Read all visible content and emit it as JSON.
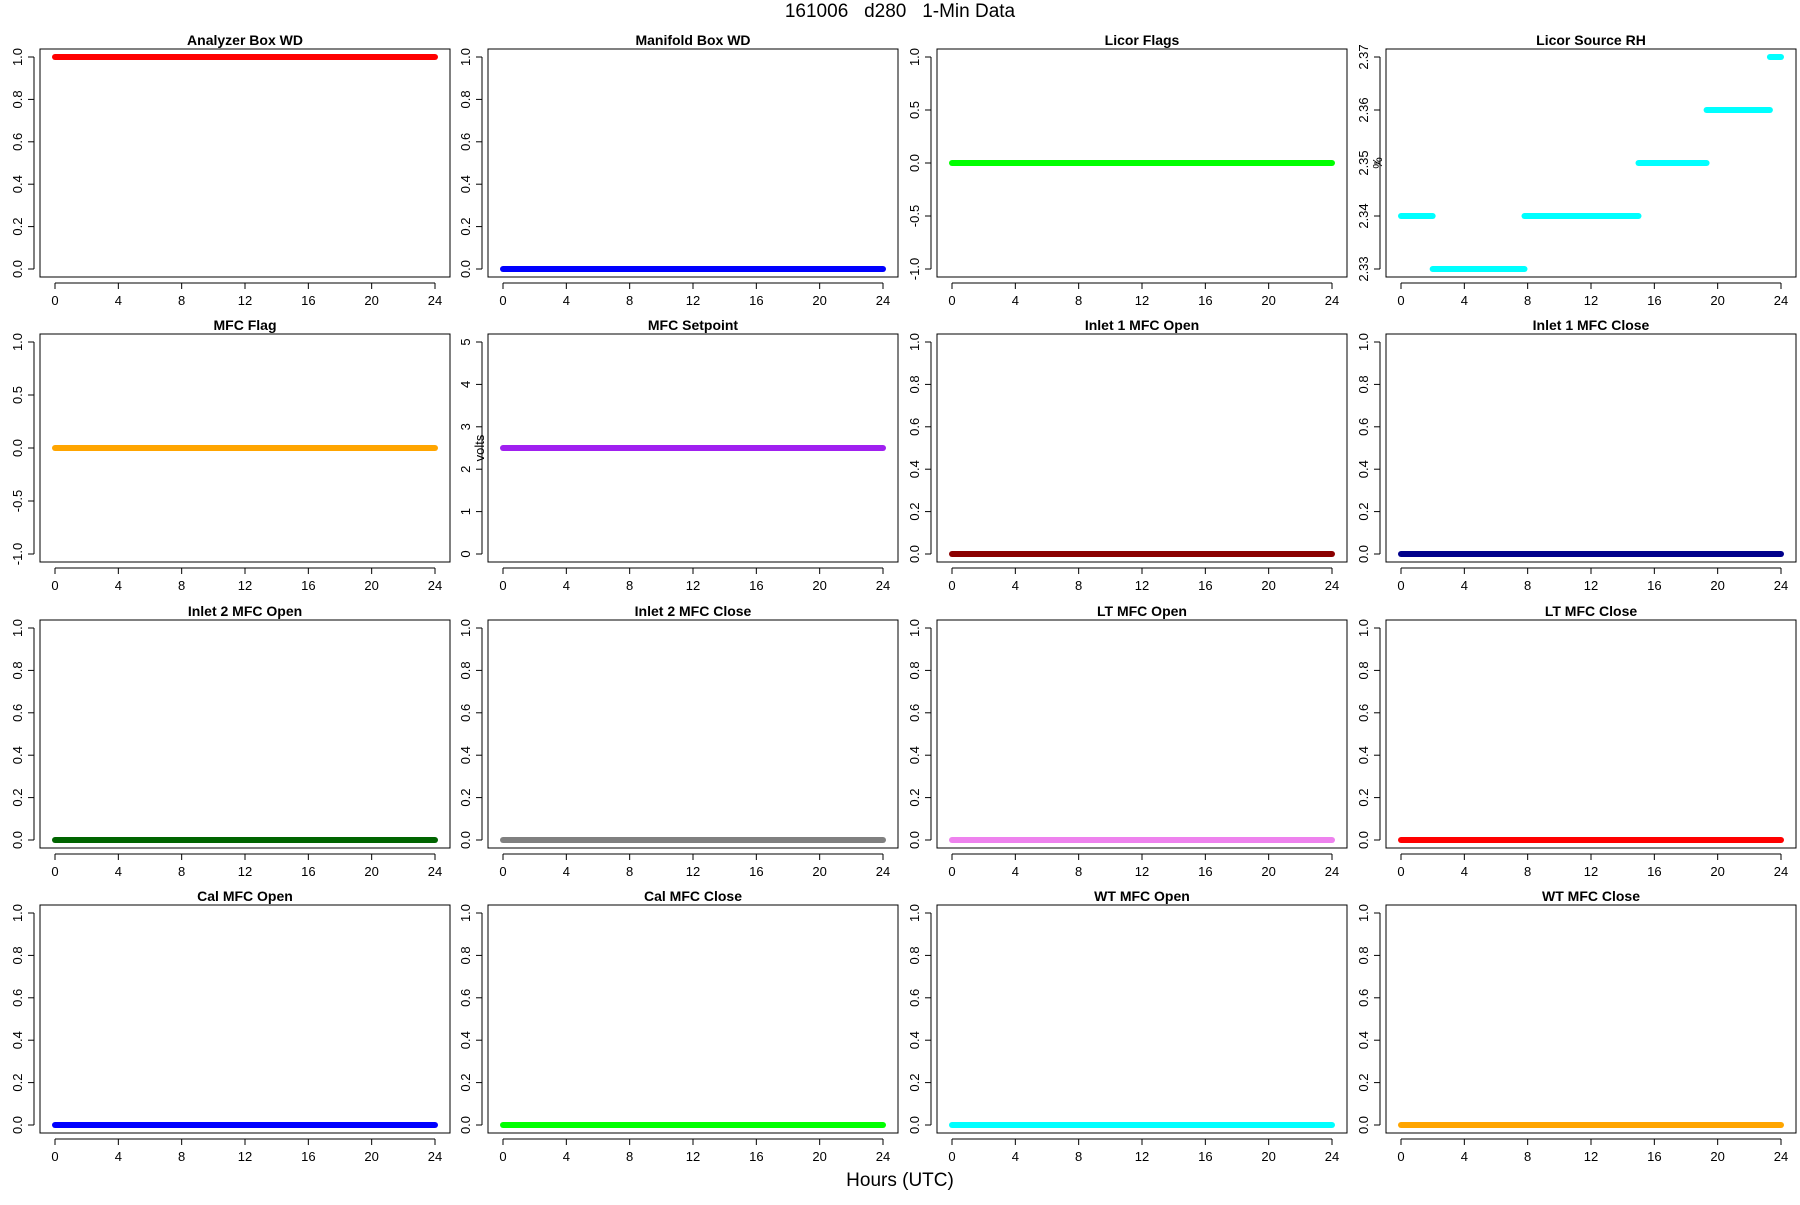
{
  "figure": {
    "title": "161006   d280   1-Min Data",
    "xlabel": "Hours (UTC)"
  },
  "chart_data": [
    {
      "type": "scatter",
      "title": "Analyzer Box WD",
      "ylabel": "",
      "color": "#ff0000",
      "xlim": [
        0,
        24
      ],
      "ylim": [
        0,
        1
      ],
      "xticks": [
        0,
        4,
        8,
        12,
        16,
        20,
        24
      ],
      "yticks": [
        "0.0",
        "0.2",
        "0.4",
        "0.6",
        "0.8",
        "1.0"
      ],
      "segments": [
        {
          "x": [
            0,
            24
          ],
          "y": 1
        }
      ]
    },
    {
      "type": "scatter",
      "title": "Manifold Box WD",
      "ylabel": "",
      "color": "#0000ff",
      "xlim": [
        0,
        24
      ],
      "ylim": [
        0,
        1
      ],
      "xticks": [
        0,
        4,
        8,
        12,
        16,
        20,
        24
      ],
      "yticks": [
        "0.0",
        "0.2",
        "0.4",
        "0.6",
        "0.8",
        "1.0"
      ],
      "segments": [
        {
          "x": [
            0,
            24
          ],
          "y": 0
        }
      ]
    },
    {
      "type": "scatter",
      "title": "Licor Flags",
      "ylabel": "",
      "color": "#00ff00",
      "xlim": [
        0,
        24
      ],
      "ylim": [
        -1,
        1
      ],
      "xticks": [
        0,
        4,
        8,
        12,
        16,
        20,
        24
      ],
      "yticks": [
        "-1.0",
        "-0.5",
        "0.0",
        "0.5",
        "1.0"
      ],
      "segments": [
        {
          "x": [
            0,
            24
          ],
          "y": 0
        }
      ]
    },
    {
      "type": "scatter",
      "title": "Licor Source RH",
      "ylabel": "%",
      "color": "#00ffff",
      "xlim": [
        0,
        24
      ],
      "ylim": [
        2.33,
        2.37
      ],
      "xticks": [
        0,
        4,
        8,
        12,
        16,
        20,
        24
      ],
      "yticks": [
        "2.33",
        "2.34",
        "2.35",
        "2.36",
        "2.37"
      ],
      "segments": [
        {
          "x": [
            0,
            2
          ],
          "y": 2.34
        },
        {
          "x": [
            2,
            7.8
          ],
          "y": 2.33
        },
        {
          "x": [
            7.8,
            15
          ],
          "y": 2.34
        },
        {
          "x": [
            15,
            19.3
          ],
          "y": 2.35
        },
        {
          "x": [
            19.3,
            23.3
          ],
          "y": 2.36
        },
        {
          "x": [
            23.3,
            24
          ],
          "y": 2.37
        }
      ]
    },
    {
      "type": "scatter",
      "title": "MFC Flag",
      "ylabel": "",
      "color": "#ffa500",
      "xlim": [
        0,
        24
      ],
      "ylim": [
        -1,
        1
      ],
      "xticks": [
        0,
        4,
        8,
        12,
        16,
        20,
        24
      ],
      "yticks": [
        "-1.0",
        "-0.5",
        "0.0",
        "0.5",
        "1.0"
      ],
      "segments": [
        {
          "x": [
            0,
            24
          ],
          "y": 0
        }
      ]
    },
    {
      "type": "scatter",
      "title": "MFC Setpoint",
      "ylabel": "volts",
      "color": "#a020f0",
      "xlim": [
        0,
        24
      ],
      "ylim": [
        0,
        5
      ],
      "xticks": [
        0,
        4,
        8,
        12,
        16,
        20,
        24
      ],
      "yticks": [
        "0",
        "1",
        "2",
        "3",
        "4",
        "5"
      ],
      "segments": [
        {
          "x": [
            0,
            24
          ],
          "y": 2.5
        }
      ]
    },
    {
      "type": "scatter",
      "title": "Inlet 1 MFC Open",
      "ylabel": "",
      "color": "#8b0000",
      "xlim": [
        0,
        24
      ],
      "ylim": [
        0,
        1
      ],
      "xticks": [
        0,
        4,
        8,
        12,
        16,
        20,
        24
      ],
      "yticks": [
        "0.0",
        "0.2",
        "0.4",
        "0.6",
        "0.8",
        "1.0"
      ],
      "segments": [
        {
          "x": [
            0,
            24
          ],
          "y": 0
        }
      ]
    },
    {
      "type": "scatter",
      "title": "Inlet 1 MFC Close",
      "ylabel": "",
      "color": "#00008b",
      "xlim": [
        0,
        24
      ],
      "ylim": [
        0,
        1
      ],
      "xticks": [
        0,
        4,
        8,
        12,
        16,
        20,
        24
      ],
      "yticks": [
        "0.0",
        "0.2",
        "0.4",
        "0.6",
        "0.8",
        "1.0"
      ],
      "segments": [
        {
          "x": [
            0,
            24
          ],
          "y": 0
        }
      ]
    },
    {
      "type": "scatter",
      "title": "Inlet 2 MFC Open",
      "ylabel": "",
      "color": "#006400",
      "xlim": [
        0,
        24
      ],
      "ylim": [
        0,
        1
      ],
      "xticks": [
        0,
        4,
        8,
        12,
        16,
        20,
        24
      ],
      "yticks": [
        "0.0",
        "0.2",
        "0.4",
        "0.6",
        "0.8",
        "1.0"
      ],
      "segments": [
        {
          "x": [
            0,
            24
          ],
          "y": 0
        }
      ]
    },
    {
      "type": "scatter",
      "title": "Inlet 2 MFC Close",
      "ylabel": "",
      "color": "#808080",
      "xlim": [
        0,
        24
      ],
      "ylim": [
        0,
        1
      ],
      "xticks": [
        0,
        4,
        8,
        12,
        16,
        20,
        24
      ],
      "yticks": [
        "0.0",
        "0.2",
        "0.4",
        "0.6",
        "0.8",
        "1.0"
      ],
      "segments": [
        {
          "x": [
            0,
            24
          ],
          "y": 0
        }
      ]
    },
    {
      "type": "scatter",
      "title": "LT MFC Open",
      "ylabel": "",
      "color": "#ee82ee",
      "xlim": [
        0,
        24
      ],
      "ylim": [
        0,
        1
      ],
      "xticks": [
        0,
        4,
        8,
        12,
        16,
        20,
        24
      ],
      "yticks": [
        "0.0",
        "0.2",
        "0.4",
        "0.6",
        "0.8",
        "1.0"
      ],
      "segments": [
        {
          "x": [
            0,
            24
          ],
          "y": 0
        }
      ]
    },
    {
      "type": "scatter",
      "title": "LT MFC Close",
      "ylabel": "",
      "color": "#ff0000",
      "xlim": [
        0,
        24
      ],
      "ylim": [
        0,
        1
      ],
      "xticks": [
        0,
        4,
        8,
        12,
        16,
        20,
        24
      ],
      "yticks": [
        "0.0",
        "0.2",
        "0.4",
        "0.6",
        "0.8",
        "1.0"
      ],
      "segments": [
        {
          "x": [
            0,
            24
          ],
          "y": 0
        }
      ]
    },
    {
      "type": "scatter",
      "title": "Cal MFC Open",
      "ylabel": "",
      "color": "#0000ff",
      "xlim": [
        0,
        24
      ],
      "ylim": [
        0,
        1
      ],
      "xticks": [
        0,
        4,
        8,
        12,
        16,
        20,
        24
      ],
      "yticks": [
        "0.0",
        "0.2",
        "0.4",
        "0.6",
        "0.8",
        "1.0"
      ],
      "segments": [
        {
          "x": [
            0,
            24
          ],
          "y": 0
        }
      ]
    },
    {
      "type": "scatter",
      "title": "Cal MFC Close",
      "ylabel": "",
      "color": "#00ff00",
      "xlim": [
        0,
        24
      ],
      "ylim": [
        0,
        1
      ],
      "xticks": [
        0,
        4,
        8,
        12,
        16,
        20,
        24
      ],
      "yticks": [
        "0.0",
        "0.2",
        "0.4",
        "0.6",
        "0.8",
        "1.0"
      ],
      "segments": [
        {
          "x": [
            0,
            24
          ],
          "y": 0
        }
      ]
    },
    {
      "type": "scatter",
      "title": "WT MFC Open",
      "ylabel": "",
      "color": "#00ffff",
      "xlim": [
        0,
        24
      ],
      "ylim": [
        0,
        1
      ],
      "xticks": [
        0,
        4,
        8,
        12,
        16,
        20,
        24
      ],
      "yticks": [
        "0.0",
        "0.2",
        "0.4",
        "0.6",
        "0.8",
        "1.0"
      ],
      "segments": [
        {
          "x": [
            0,
            24
          ],
          "y": 0
        }
      ]
    },
    {
      "type": "scatter",
      "title": "WT MFC Close",
      "ylabel": "",
      "color": "#ffa500",
      "xlim": [
        0,
        24
      ],
      "ylim": [
        0,
        1
      ],
      "xticks": [
        0,
        4,
        8,
        12,
        16,
        20,
        24
      ],
      "yticks": [
        "0.0",
        "0.2",
        "0.4",
        "0.6",
        "0.8",
        "1.0"
      ],
      "segments": [
        {
          "x": [
            0,
            24
          ],
          "y": 0
        }
      ]
    }
  ]
}
